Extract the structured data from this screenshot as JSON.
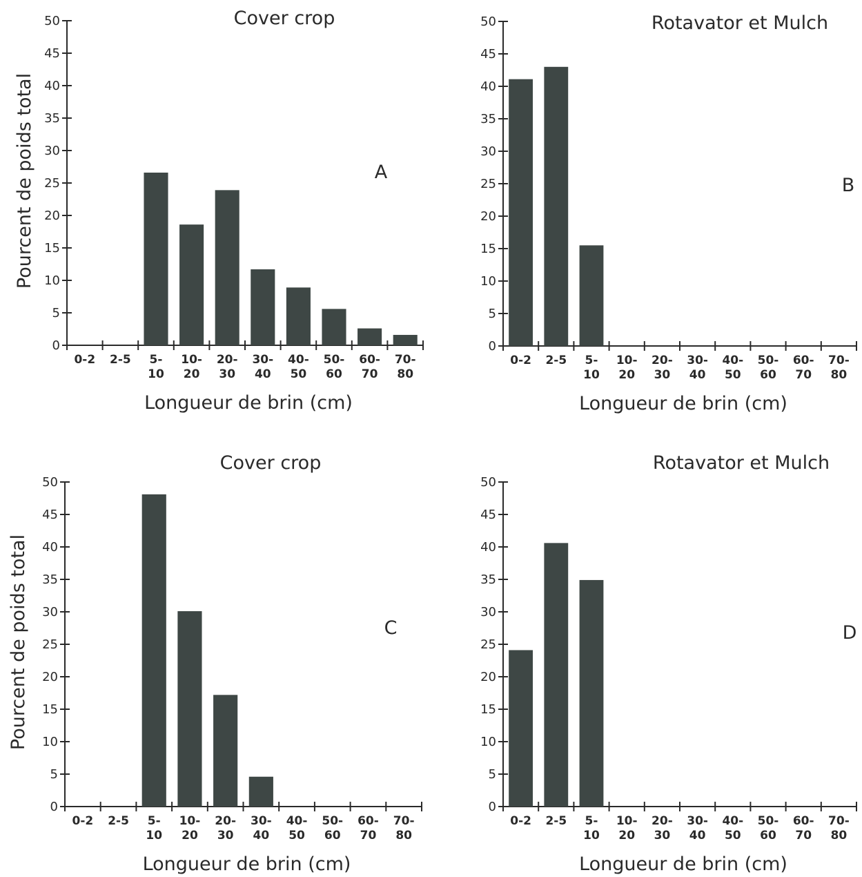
{
  "chart_data": [
    {
      "type": "bar",
      "title": "Cover crop",
      "panel_label": "A",
      "xlabel": "Longueur de brin (cm)",
      "ylabel": "Pourcent de poids total",
      "categories": [
        [
          "0-2"
        ],
        [
          "2-5"
        ],
        [
          "5-",
          "10"
        ],
        [
          "10-",
          "20"
        ],
        [
          "20-",
          "30"
        ],
        [
          "30-",
          "40"
        ],
        [
          "40-",
          "50"
        ],
        [
          "50-",
          "60"
        ],
        [
          "60-",
          "70"
        ],
        [
          "70-",
          "80"
        ]
      ],
      "values": [
        0,
        0,
        26.6,
        18.6,
        23.9,
        11.7,
        8.9,
        5.6,
        2.6,
        1.6
      ],
      "ylim": [
        0,
        50
      ],
      "yticks": [
        0,
        5,
        10,
        15,
        20,
        25,
        30,
        35,
        40,
        45,
        50
      ],
      "bar_color": "#3e4745"
    },
    {
      "type": "bar",
      "title": "Rotavator et Mulch",
      "panel_label": "B",
      "xlabel": "Longueur de brin (cm)",
      "ylabel": "",
      "categories": [
        [
          "0-2"
        ],
        [
          "2-5"
        ],
        [
          "5-",
          "10"
        ],
        [
          "10-",
          "20"
        ],
        [
          "20-",
          "30"
        ],
        [
          "30-",
          "40"
        ],
        [
          "40-",
          "50"
        ],
        [
          "50-",
          "60"
        ],
        [
          "60-",
          "70"
        ],
        [
          "70-",
          "80"
        ]
      ],
      "values": [
        41.1,
        43.0,
        15.5,
        0,
        0,
        0,
        0,
        0,
        0,
        0
      ],
      "ylim": [
        0,
        50
      ],
      "yticks": [
        0,
        5,
        10,
        15,
        20,
        25,
        30,
        35,
        40,
        45,
        50
      ],
      "bar_color": "#3e4745"
    },
    {
      "type": "bar",
      "title": "Cover crop",
      "panel_label": "C",
      "xlabel": "Longueur de brin (cm)",
      "ylabel": "Pourcent de poids total",
      "categories": [
        [
          "0-2"
        ],
        [
          "2-5"
        ],
        [
          "5-",
          "10"
        ],
        [
          "10-",
          "20"
        ],
        [
          "20-",
          "30"
        ],
        [
          "30-",
          "40"
        ],
        [
          "40-",
          "50"
        ],
        [
          "50-",
          "60"
        ],
        [
          "60-",
          "70"
        ],
        [
          "70-",
          "80"
        ]
      ],
      "values": [
        0,
        0,
        48.1,
        30.1,
        17.2,
        4.6,
        0,
        0,
        0,
        0
      ],
      "ylim": [
        0,
        50
      ],
      "yticks": [
        0,
        5,
        10,
        15,
        20,
        25,
        30,
        35,
        40,
        45,
        50
      ],
      "bar_color": "#3e4745"
    },
    {
      "type": "bar",
      "title": "Rotavator et Mulch",
      "panel_label": "D",
      "xlabel": "Longueur de brin (cm)",
      "ylabel": "",
      "categories": [
        [
          "0-2"
        ],
        [
          "2-5"
        ],
        [
          "5-",
          "10"
        ],
        [
          "10-",
          "20"
        ],
        [
          "20-",
          "30"
        ],
        [
          "30-",
          "40"
        ],
        [
          "40-",
          "50"
        ],
        [
          "50-",
          "60"
        ],
        [
          "60-",
          "70"
        ],
        [
          "70-",
          "80"
        ]
      ],
      "values": [
        24.1,
        40.6,
        34.9,
        0,
        0,
        0,
        0,
        0,
        0,
        0
      ],
      "ylim": [
        0,
        50
      ],
      "yticks": [
        0,
        5,
        10,
        15,
        20,
        25,
        30,
        35,
        40,
        45,
        50
      ],
      "bar_color": "#3e4745"
    }
  ]
}
